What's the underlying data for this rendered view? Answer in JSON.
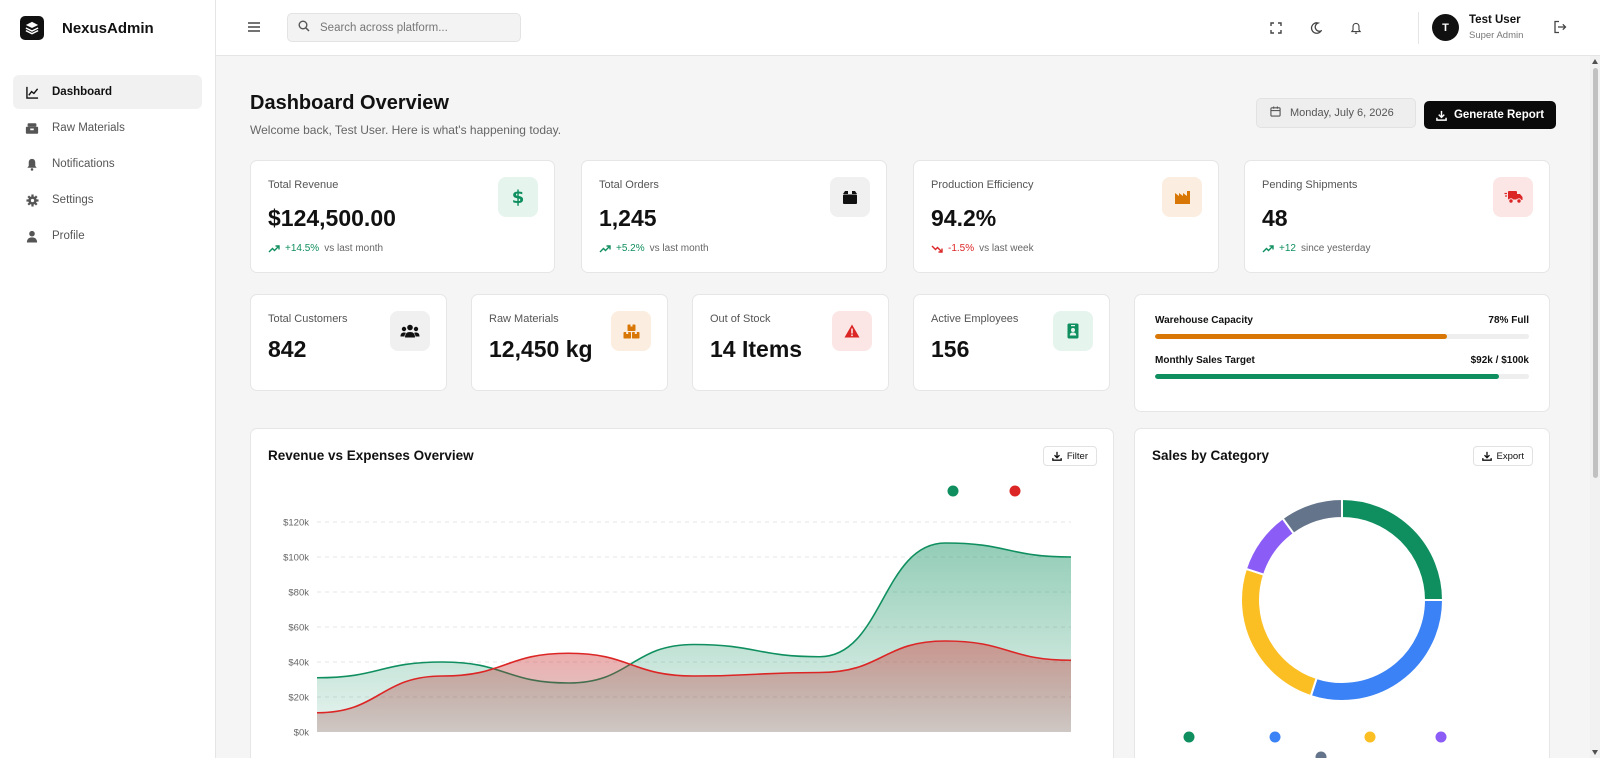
{
  "brand": {
    "name": "NexusAdmin"
  },
  "sidebar": {
    "items": [
      {
        "label": "Dashboard",
        "icon": "chart-line-icon",
        "active": true
      },
      {
        "label": "Raw Materials",
        "icon": "boxes-icon"
      },
      {
        "label": "Notifications",
        "icon": "bell-icon"
      },
      {
        "label": "Settings",
        "icon": "gear-icon"
      },
      {
        "label": "Profile",
        "icon": "user-icon"
      }
    ]
  },
  "topbar": {
    "search_placeholder": "Search across platform...",
    "user_initial": "T",
    "user_name": "Test User",
    "user_role": "Super Admin"
  },
  "header": {
    "title": "Dashboard Overview",
    "subtitle": "Welcome back, Test User. Here is what's happening today.",
    "date": "Monday, July 6, 2026",
    "report_label": "Generate Report"
  },
  "stats": [
    {
      "label": "Total Revenue",
      "value": "$124,500.00",
      "change": "+14.5%",
      "direction": "up",
      "period": "vs last month",
      "icon": "dollar-icon",
      "icon_color": "#0f8f5f",
      "icon_bg": "#e6f4ee"
    },
    {
      "label": "Total Orders",
      "value": "1,245",
      "change": "+5.2%",
      "direction": "up",
      "period": "vs last month",
      "icon": "box-icon",
      "icon_color": "#111111",
      "icon_bg": "#f0f0f0"
    },
    {
      "label": "Production Efficiency",
      "value": "94.2%",
      "change": "-1.5%",
      "direction": "down",
      "period": "vs last week",
      "icon": "factory-icon",
      "icon_color": "#d97706",
      "icon_bg": "#fbeee0"
    },
    {
      "label": "Pending Shipments",
      "value": "48",
      "change": "+12",
      "direction": "up",
      "period": "since yesterday",
      "icon": "truck-icon",
      "icon_color": "#dc2626",
      "icon_bg": "#fbe5e5"
    }
  ],
  "mini_stats": [
    {
      "label": "Total Customers",
      "value": "842",
      "icon": "users-icon",
      "icon_color": "#111111",
      "icon_bg": "#f0f0f0"
    },
    {
      "label": "Raw Materials",
      "value": "12,450 kg",
      "icon": "boxes-icon",
      "icon_color": "#d97706",
      "icon_bg": "#fbeee0"
    },
    {
      "label": "Out of Stock",
      "value": "14 Items",
      "icon": "warning-icon",
      "icon_color": "#dc2626",
      "icon_bg": "#fbe5e5"
    },
    {
      "label": "Active Employees",
      "value": "156",
      "icon": "id-badge-icon",
      "icon_color": "#0f8f5f",
      "icon_bg": "#e6f4ee"
    }
  ],
  "progress": [
    {
      "label": "Warehouse Capacity",
      "value_text": "78% Full",
      "fraction": 0.78,
      "color": "#d97706"
    },
    {
      "label": "Monthly Sales Target",
      "value_text": "$92k / $100k",
      "fraction": 0.92,
      "color": "#0f8f5f"
    }
  ],
  "revenue_card": {
    "title": "Revenue vs Expenses Overview",
    "filter_label": "Filter"
  },
  "category_card": {
    "title": "Sales by Category",
    "export_label": "Export"
  },
  "chart_data": [
    {
      "type": "area",
      "title": "Revenue vs Expenses Overview",
      "y_ticks": [
        "$0k",
        "$20k",
        "$40k",
        "$60k",
        "$80k",
        "$100k",
        "$120k"
      ],
      "ylim": [
        0,
        120
      ],
      "grid": true,
      "legend_position": "top-right",
      "series": [
        {
          "values": [
            31,
            40,
            28,
            50,
            43,
            108,
            100
          ],
          "color": "#0f8f5f"
        },
        {
          "values": [
            11,
            32,
            45,
            32,
            34,
            52,
            41
          ],
          "color": "#dc2626"
        }
      ]
    },
    {
      "type": "pie",
      "title": "Sales by Category",
      "slices": [
        {
          "value": 25,
          "color": "#0f8f5f"
        },
        {
          "value": 30,
          "color": "#3b82f6"
        },
        {
          "value": 25,
          "color": "#fbbf24"
        },
        {
          "value": 10,
          "color": "#8b5cf6"
        },
        {
          "value": 10,
          "color": "#64748b"
        }
      ]
    }
  ]
}
